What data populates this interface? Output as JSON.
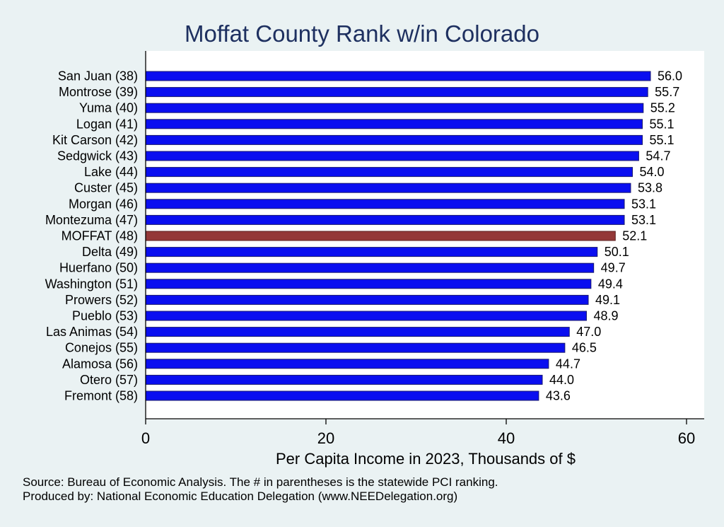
{
  "chart_data": {
    "type": "bar",
    "orientation": "horizontal",
    "title": "Moffat County Rank w/in Colorado",
    "xlabel": "Per Capita Income in 2023, Thousands of $",
    "ylabel": "",
    "xlim": [
      0,
      62
    ],
    "xticks": [
      0,
      20,
      40,
      60
    ],
    "grid": false,
    "categories": [
      "San Juan (38)",
      "Montrose (39)",
      "Yuma (40)",
      "Logan (41)",
      "Kit Carson (42)",
      "Sedgwick (43)",
      "Lake (44)",
      "Custer (45)",
      "Morgan (46)",
      "Montezuma (47)",
      "MOFFAT (48)",
      "Delta (49)",
      "Huerfano (50)",
      "Washington (51)",
      "Prowers (52)",
      "Pueblo (53)",
      "Las Animas (54)",
      "Conejos (55)",
      "Alamosa (56)",
      "Otero (57)",
      "Fremont (58)"
    ],
    "values": [
      56.0,
      55.7,
      55.2,
      55.1,
      55.1,
      54.7,
      54.0,
      53.8,
      53.1,
      53.1,
      52.1,
      50.1,
      49.7,
      49.4,
      49.1,
      48.9,
      47.0,
      46.5,
      44.7,
      44.0,
      43.6
    ],
    "value_labels": [
      "56.0",
      "55.7",
      "55.2",
      "55.1",
      "55.1",
      "54.7",
      "54.0",
      "53.8",
      "53.1",
      "53.1",
      "52.1",
      "50.1",
      "49.7",
      "49.4",
      "49.1",
      "48.9",
      "47.0",
      "46.5",
      "44.7",
      "44.0",
      "43.6"
    ],
    "highlight_category": "MOFFAT (48)",
    "colors": {
      "bar": "#0a0ef0",
      "highlight": "#943838",
      "bar_outline": "#1a1a6e",
      "title": "#1e3060",
      "background": "#eaf2f3",
      "plot_background": "#ffffff"
    }
  },
  "footer": {
    "source": "Source: Bureau of Economic Analysis. The # in parentheses is the statewide PCI ranking.",
    "produced_by": "Produced by: National Economic Education Delegation (www.NEEDelegation.org)"
  }
}
